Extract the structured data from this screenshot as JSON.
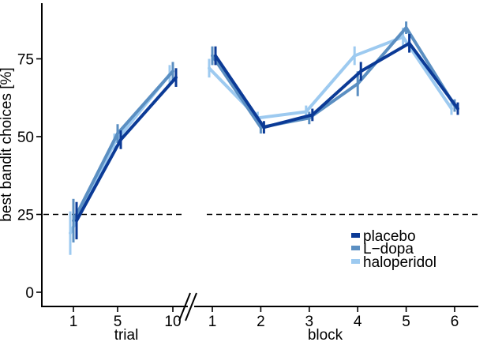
{
  "chart_data": {
    "type": "line",
    "ylabel": "best bandit choices [%]",
    "ylim": [
      0,
      92
    ],
    "yticks": [
      0,
      25,
      50,
      75
    ],
    "chance_line": 25,
    "grid": false,
    "legend": {
      "placement": "bottom-right",
      "entries": [
        "placebo",
        "L−dopa",
        "haloperidol"
      ]
    },
    "colors": {
      "placebo": "#0b3a96",
      "L-dopa": "#5b8fc2",
      "haloperidol": "#9dcaf0",
      "chance": "#000000"
    },
    "panels": [
      {
        "xlabel": "trial",
        "x": [
          1,
          5,
          10
        ],
        "series": [
          {
            "name": "placebo",
            "y": [
              23,
              49,
              69
            ],
            "err": [
              6,
              3,
              3
            ]
          },
          {
            "name": "L−dopa",
            "y": [
              23,
              51,
              71
            ],
            "err": [
              7,
              3,
              3
            ]
          },
          {
            "name": "haloperidol",
            "y": [
              19,
              48,
              70
            ],
            "err": [
              7,
              3,
              3
            ]
          }
        ]
      },
      {
        "xlabel": "block",
        "x": [
          1,
          2,
          3,
          4,
          5,
          6
        ],
        "series": [
          {
            "name": "placebo",
            "y": [
              76,
              53,
              57,
              71,
              80,
              59
            ],
            "err": [
              3,
              2,
              2,
              3,
              3,
              2
            ]
          },
          {
            "name": "L−dopa",
            "y": [
              76,
              53,
              56,
              67,
              85,
              60
            ],
            "err": [
              3,
              2,
              2,
              4,
              2,
              2
            ]
          },
          {
            "name": "haloperidol",
            "y": [
              72,
              56,
              58,
              76,
              82,
              59
            ],
            "err": [
              3,
              2,
              2,
              3,
              3,
              2
            ]
          }
        ]
      }
    ]
  }
}
